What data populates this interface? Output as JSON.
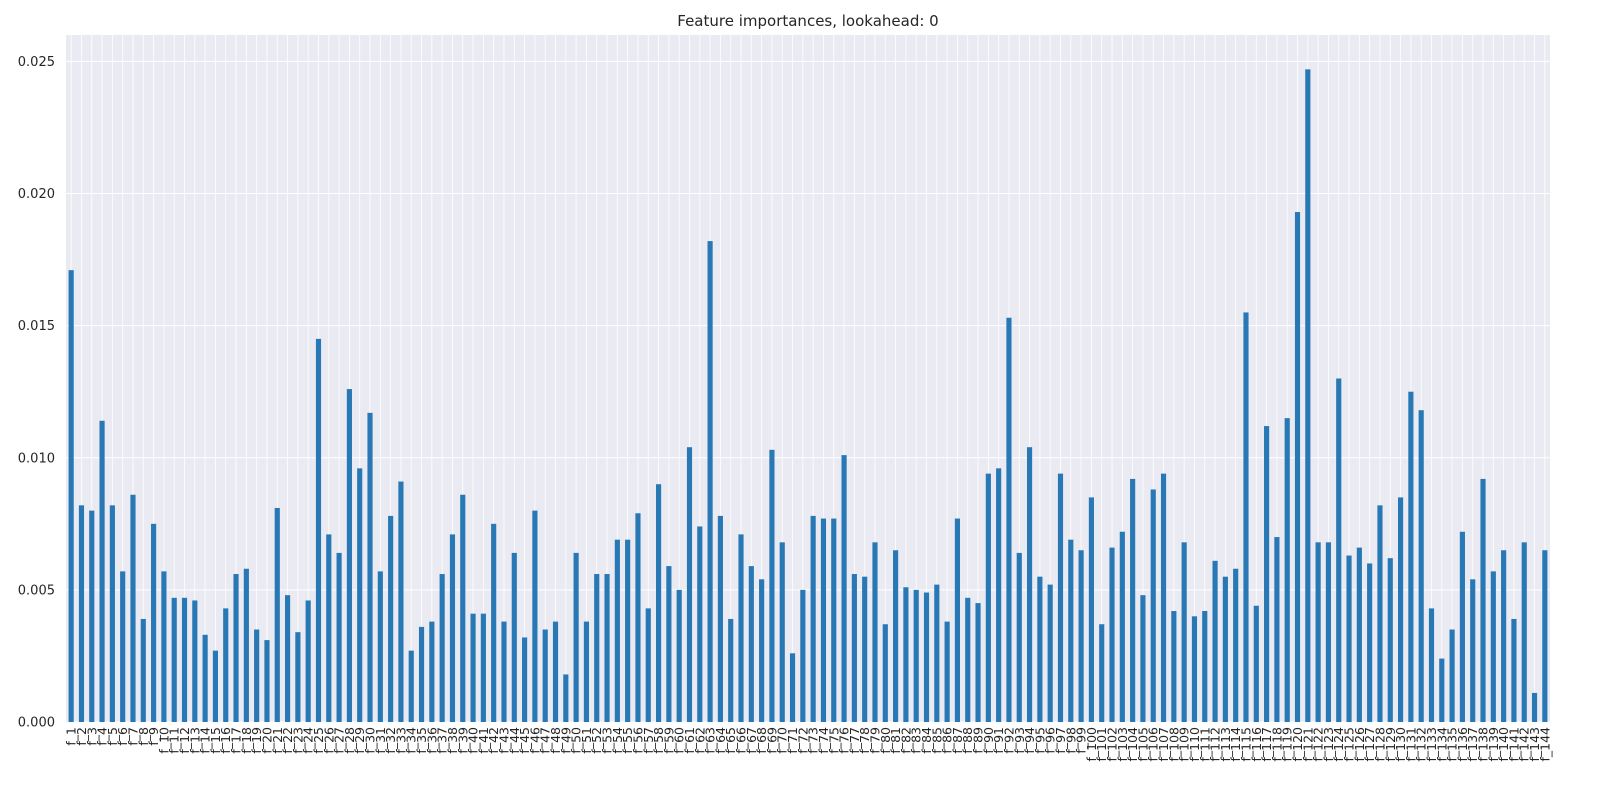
{
  "chart_data": {
    "type": "bar",
    "title": "Feature importances, lookahead: 0",
    "xlabel": "",
    "ylabel": "",
    "ylim": [
      0,
      0.026
    ],
    "yticks": [
      0.0,
      0.005,
      0.01,
      0.015,
      0.02,
      0.025
    ],
    "ytick_labels": [
      "0.000",
      "0.005",
      "0.010",
      "0.015",
      "0.020",
      "0.025"
    ],
    "grid": true,
    "legend": "none",
    "colors": {
      "bar": "#2878b5",
      "plot_bg": "#eaeaf2",
      "grid": "#ffffff"
    },
    "categories": [
      "f_1",
      "f_2",
      "f_3",
      "f_4",
      "f_5",
      "f_6",
      "f_7",
      "f_8",
      "f_9",
      "f_10",
      "f_11",
      "f_12",
      "f_13",
      "f_14",
      "f_15",
      "f_16",
      "f_17",
      "f_18",
      "f_19",
      "f_20",
      "f_21",
      "f_22",
      "f_23",
      "f_24",
      "f_25",
      "f_26",
      "f_27",
      "f_28",
      "f_29",
      "f_30",
      "f_31",
      "f_32",
      "f_33",
      "f_34",
      "f_35",
      "f_36",
      "f_37",
      "f_38",
      "f_39",
      "f_40",
      "f_41",
      "f_42",
      "f_43",
      "f_44",
      "f_45",
      "f_46",
      "f_47",
      "f_48",
      "f_49",
      "f_50",
      "f_51",
      "f_52",
      "f_53",
      "f_54",
      "f_55",
      "f_56",
      "f_57",
      "f_58",
      "f_59",
      "f_60",
      "f_61",
      "f_62",
      "f_63",
      "f_64",
      "f_65",
      "f_66",
      "f_67",
      "f_68",
      "f_69",
      "f_70",
      "f_71",
      "f_72",
      "f_73",
      "f_74",
      "f_75",
      "f_76",
      "f_77",
      "f_78",
      "f_79",
      "f_80",
      "f_81",
      "f_82",
      "f_83",
      "f_84",
      "f_85",
      "f_86",
      "f_87",
      "f_88",
      "f_89",
      "f_90",
      "f_91",
      "f_92",
      "f_93",
      "f_94",
      "f_95",
      "f_96",
      "f_97",
      "f_98",
      "f_99",
      "f_100",
      "f_101",
      "f_102",
      "f_103",
      "f_104",
      "f_105",
      "f_106",
      "f_107",
      "f_108",
      "f_109",
      "f_110",
      "f_111",
      "f_112",
      "f_113",
      "f_114",
      "f_115",
      "f_116",
      "f_117",
      "f_118",
      "f_119",
      "f_120",
      "f_121",
      "f_122",
      "f_123",
      "f_124",
      "f_125",
      "f_126",
      "f_127",
      "f_128",
      "f_129",
      "f_130",
      "f_131",
      "f_132",
      "f_133",
      "f_134",
      "f_135",
      "f_136",
      "f_137",
      "f_138",
      "f_139",
      "f_140",
      "f_141",
      "f_142",
      "f_143",
      "f_144"
    ],
    "values": [
      0.0171,
      0.0082,
      0.008,
      0.0114,
      0.0082,
      0.0057,
      0.0086,
      0.0039,
      0.0075,
      0.0057,
      0.0047,
      0.0047,
      0.0046,
      0.0033,
      0.0027,
      0.0043,
      0.0056,
      0.0058,
      0.0035,
      0.0031,
      0.0081,
      0.0048,
      0.0034,
      0.0046,
      0.0145,
      0.0071,
      0.0064,
      0.0126,
      0.0096,
      0.0117,
      0.0057,
      0.0078,
      0.0091,
      0.0027,
      0.0036,
      0.0038,
      0.0056,
      0.0071,
      0.0086,
      0.0041,
      0.0041,
      0.0075,
      0.0038,
      0.0064,
      0.0032,
      0.008,
      0.0035,
      0.0038,
      0.0018,
      0.0064,
      0.0038,
      0.0056,
      0.0056,
      0.0069,
      0.0069,
      0.0079,
      0.0043,
      0.009,
      0.0059,
      0.005,
      0.0104,
      0.0074,
      0.0182,
      0.0078,
      0.0039,
      0.0071,
      0.0059,
      0.0054,
      0.0103,
      0.0068,
      0.0026,
      0.005,
      0.0078,
      0.0077,
      0.0077,
      0.0101,
      0.0056,
      0.0055,
      0.0068,
      0.0037,
      0.0065,
      0.0051,
      0.005,
      0.0049,
      0.0052,
      0.0038,
      0.0077,
      0.0047,
      0.0045,
      0.0094,
      0.0096,
      0.0153,
      0.0064,
      0.0104,
      0.0055,
      0.0052,
      0.0094,
      0.0069,
      0.0065,
      0.0085,
      0.0037,
      0.0066,
      0.0072,
      0.0092,
      0.0048,
      0.0088,
      0.0094,
      0.0042,
      0.0068,
      0.004,
      0.0042,
      0.0061,
      0.0055,
      0.0058,
      0.0155,
      0.0044,
      0.0112,
      0.007,
      0.0115,
      0.0193,
      0.0247,
      0.0068,
      0.0068,
      0.013,
      0.0063,
      0.0066,
      0.006,
      0.0082,
      0.0062,
      0.0085,
      0.0125,
      0.0118,
      0.0043,
      0.0024,
      0.0035,
      0.0072,
      0.0054,
      0.0092,
      0.0057,
      0.0065,
      0.0039,
      0.0068,
      0.0011,
      0.0065
    ]
  }
}
